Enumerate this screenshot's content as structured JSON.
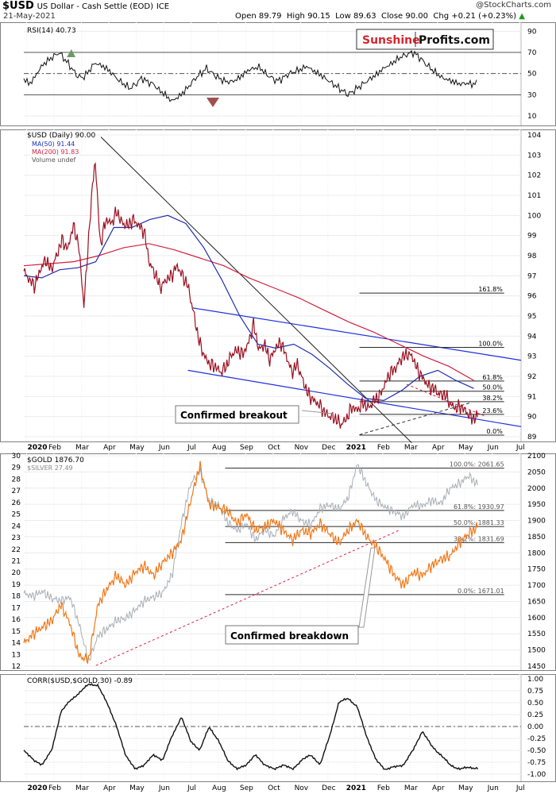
{
  "header": {
    "symbol": "$USD",
    "name": "US Dollar - Cash Settle (EOD)",
    "exchange": "ICE",
    "date": "21-May-2021",
    "open_label": "Open",
    "open": "89.79",
    "high_label": "High",
    "high": "90.15",
    "low_label": "Low",
    "low": "89.63",
    "close_label": "Close",
    "close": "90.00",
    "chg_label": "Chg",
    "chg": "+0.21 (+0.23%)",
    "credit": "@StockCharts.com",
    "logo_part1": "Sunshine",
    "logo_part2": "Profits.com"
  },
  "colors": {
    "usd": "#9b1020",
    "ma50": "#1f2fb0",
    "ma200": "#d0213f",
    "gold": "#f07818",
    "silver": "#a8aeb4",
    "trend_blue": "#1c2de0",
    "fib_line": "#2a2a2a",
    "red_dash": "#e02040",
    "rsi_fill_over": "#6b9a6b",
    "rsi_fill_under": "#a05050"
  },
  "x_axis": {
    "labels": [
      "2020",
      "Feb",
      "Mar",
      "Apr",
      "May",
      "Jun",
      "Jul",
      "Aug",
      "Sep",
      "Oct",
      "Nov",
      "Dec",
      "2021",
      "Feb",
      "Mar",
      "Apr",
      "May",
      "Jun",
      "Jul"
    ],
    "bold": [
      "2020",
      "2021"
    ]
  },
  "rsi_panel": {
    "label": "RSI(14) 40.73",
    "ticks": [
      "90",
      "70",
      "50",
      "30",
      "10"
    ]
  },
  "price_panel": {
    "legend_main": "$USD (Daily) 90.00",
    "legend_ma50": "MA(50) 91.44",
    "legend_ma200": "MA(200) 91.83",
    "legend_volume": "Volume undef",
    "ticks": [
      "104",
      "103",
      "102",
      "101",
      "100",
      "99",
      "98",
      "97",
      "96",
      "95",
      "94",
      "93",
      "92",
      "91",
      "90",
      "89"
    ],
    "fib_labels": [
      "161.8%",
      "100.0%",
      "61.8%",
      "50.0%",
      "38.2%",
      "23.6%",
      "0.0%"
    ],
    "callout": "Confirmed breakout"
  },
  "gold_panel": {
    "legend_gold": "$GOLD 1876.70",
    "legend_silver": "$SILVER 27.49",
    "left_ticks": [
      "30",
      "29",
      "28",
      "27",
      "26",
      "25",
      "24",
      "23",
      "22",
      "21",
      "20",
      "19",
      "18",
      "17",
      "16",
      "15",
      "14",
      "13",
      "12"
    ],
    "right_ticks": [
      "2100",
      "2050",
      "2000",
      "1950",
      "1900",
      "1850",
      "1800",
      "1750",
      "1700",
      "1650",
      "1600",
      "1550",
      "1500",
      "1450"
    ],
    "fib_labels": [
      "100.0%: 2061.65",
      "61.8%: 1930.97",
      "50.0%: 1881.33",
      "38.2%: 1831.69",
      "0.0%: 1671.01"
    ],
    "callout": "Confirmed breakdown"
  },
  "corr_panel": {
    "label": "CORR($USD,$GOLD,30) -0.89",
    "ticks": [
      "1.00",
      "0.75",
      "0.50",
      "0.25",
      "0.00",
      "-0.25",
      "-0.50",
      "-0.75",
      "-1.00"
    ]
  },
  "chart_data": [
    {
      "type": "line",
      "title": "RSI(14) 40.73",
      "ylim": [
        0,
        100
      ],
      "reference_lines": [
        70,
        50,
        30
      ],
      "series": [
        {
          "name": "RSI(14)",
          "values": [
            45,
            40,
            48,
            57,
            62,
            66,
            70,
            63,
            56,
            48,
            46,
            52,
            60,
            58,
            55,
            50,
            44,
            40,
            36,
            40,
            46,
            42,
            40,
            34,
            30,
            24,
            27,
            32,
            38,
            45,
            50,
            55,
            50,
            46,
            43,
            42,
            44,
            48,
            53,
            55,
            56,
            50,
            46,
            43,
            46,
            50,
            52,
            54,
            57,
            53,
            50,
            46,
            42,
            38,
            34,
            30,
            34,
            38,
            42,
            46,
            50,
            55,
            58,
            62,
            66,
            68,
            70,
            66,
            60,
            55,
            50,
            46,
            44,
            42,
            40,
            41,
            40,
            41
          ]
        }
      ]
    },
    {
      "type": "line",
      "title": "$USD (Daily) 90.00",
      "ylim": [
        88.8,
        104.3
      ],
      "series": [
        {
          "name": "$USD (Daily)",
          "values": [
            97.2,
            96.8,
            96.5,
            97.3,
            97.8,
            97.3,
            98.0,
            98.8,
            98.3,
            99.5,
            98.6,
            95.5,
            99.5,
            102.9,
            98.5,
            99.8,
            99.6,
            100.2,
            99.6,
            99.5,
            99.8,
            99.5,
            99.2,
            97.6,
            97.1,
            96.4,
            96.8,
            97.0,
            97.5,
            97.0,
            96.5,
            95.2,
            93.8,
            93.0,
            92.6,
            92.5,
            92.2,
            92.5,
            93.1,
            93.3,
            93.1,
            93.6,
            94.6,
            93.3,
            93.6,
            92.8,
            93.4,
            93.7,
            93.0,
            92.2,
            92.6,
            91.8,
            91.1,
            90.8,
            90.6,
            90.2,
            90.0,
            89.9,
            89.6,
            89.9,
            90.5,
            90.3,
            90.7,
            90.4,
            90.8,
            91.0,
            91.6,
            92.2,
            92.4,
            92.9,
            93.1,
            93.0,
            92.3,
            91.9,
            91.5,
            91.4,
            91.1,
            91.1,
            90.6,
            90.4,
            90.5,
            90.2,
            89.9,
            90.0
          ]
        },
        {
          "name": "MA(50)",
          "values": [
            97.0,
            96.9,
            97.3,
            97.4,
            97.7,
            99.4,
            99.4,
            99.8,
            100.0,
            99.6,
            98.4,
            96.8,
            95.0,
            93.6,
            93.4,
            93.6,
            93.1,
            92.4,
            91.6,
            90.9,
            90.8,
            91.3,
            92.0,
            92.3,
            91.8,
            91.4
          ]
        },
        {
          "name": "MA(200)",
          "values": [
            97.5,
            97.6,
            97.7,
            98.0,
            98.4,
            98.6,
            98.3,
            97.9,
            97.5,
            96.9,
            96.4,
            95.9,
            95.3,
            94.7,
            94.2,
            93.6,
            93.0,
            92.5,
            91.8
          ]
        }
      ],
      "fibonacci_retracement": {
        "levels": [
          "161.8%",
          "100.0%",
          "61.8%",
          "50.0%",
          "38.2%",
          "23.6%",
          "0.0%"
        ],
        "prices": [
          96.14,
          93.44,
          91.77,
          91.26,
          90.74,
          90.11,
          89.08
        ]
      },
      "annotation": "Confirmed breakout"
    },
    {
      "type": "line",
      "title": "$GOLD 1876.70 / $SILVER 27.49",
      "ylim_gold": [
        1440,
        2100
      ],
      "ylim_silver": [
        11.5,
        30.5
      ],
      "series": [
        {
          "name": "$GOLD",
          "values": [
            1520,
            1550,
            1570,
            1590,
            1640,
            1580,
            1480,
            1470,
            1640,
            1690,
            1730,
            1700,
            1740,
            1760,
            1730,
            1770,
            1800,
            1840,
            1960,
            2070,
            1950,
            1940,
            1930,
            1890,
            1920,
            1870,
            1880,
            1900,
            1870,
            1840,
            1870,
            1860,
            1890,
            1860,
            1830,
            1870,
            1900,
            1850,
            1820,
            1780,
            1730,
            1700,
            1740,
            1730,
            1760,
            1780,
            1790,
            1830,
            1860,
            1880
          ]
        },
        {
          "name": "$SILVER",
          "values": [
            18.2,
            18.0,
            18.4,
            17.8,
            17.6,
            17.9,
            15.5,
            12.4,
            14.6,
            15.2,
            15.9,
            16.1,
            16.8,
            17.6,
            17.9,
            18.3,
            19.8,
            24.2,
            27.6,
            28.7,
            26.1,
            25.8,
            24.3,
            23.6,
            24.2,
            22.8,
            23.7,
            23.1,
            24.6,
            25.3,
            24.4,
            24.1,
            25.5,
            25.8,
            25.4,
            26.4,
            29.3,
            27.6,
            26.2,
            25.6,
            25.2,
            24.8,
            25.8,
            25.7,
            26.2,
            25.9,
            27.2,
            27.6,
            28.3,
            27.5
          ]
        }
      ],
      "fibonacci_retracement": {
        "levels": [
          "100.0%",
          "61.8%",
          "50.0%",
          "38.2%",
          "0.0%"
        ],
        "prices": [
          2061.65,
          1930.97,
          1881.33,
          1831.69,
          1671.01
        ]
      },
      "annotation": "Confirmed breakdown"
    },
    {
      "type": "line",
      "title": "CORR($USD,$GOLD,30) -0.89",
      "ylim": [
        -1.0,
        1.0
      ],
      "series": [
        {
          "name": "CORR($USD,$GOLD,30)",
          "values": [
            -0.5,
            -0.7,
            -0.8,
            -0.5,
            0.3,
            0.55,
            0.7,
            0.9,
            0.85,
            0.5,
            0.0,
            -0.6,
            -0.9,
            -0.8,
            -0.6,
            -0.7,
            -0.2,
            0.2,
            -0.3,
            -0.5,
            0.0,
            -0.3,
            -0.7,
            -0.9,
            -0.8,
            -0.6,
            -0.8,
            -0.9,
            -0.8,
            -0.9,
            -0.7,
            -0.6,
            -0.8,
            -0.2,
            0.5,
            0.6,
            0.4,
            -0.2,
            -0.7,
            -0.9,
            -0.85,
            -0.8,
            -0.5,
            -0.1,
            -0.4,
            -0.6,
            -0.8,
            -0.9,
            -0.85,
            -0.89
          ]
        }
      ]
    }
  ]
}
